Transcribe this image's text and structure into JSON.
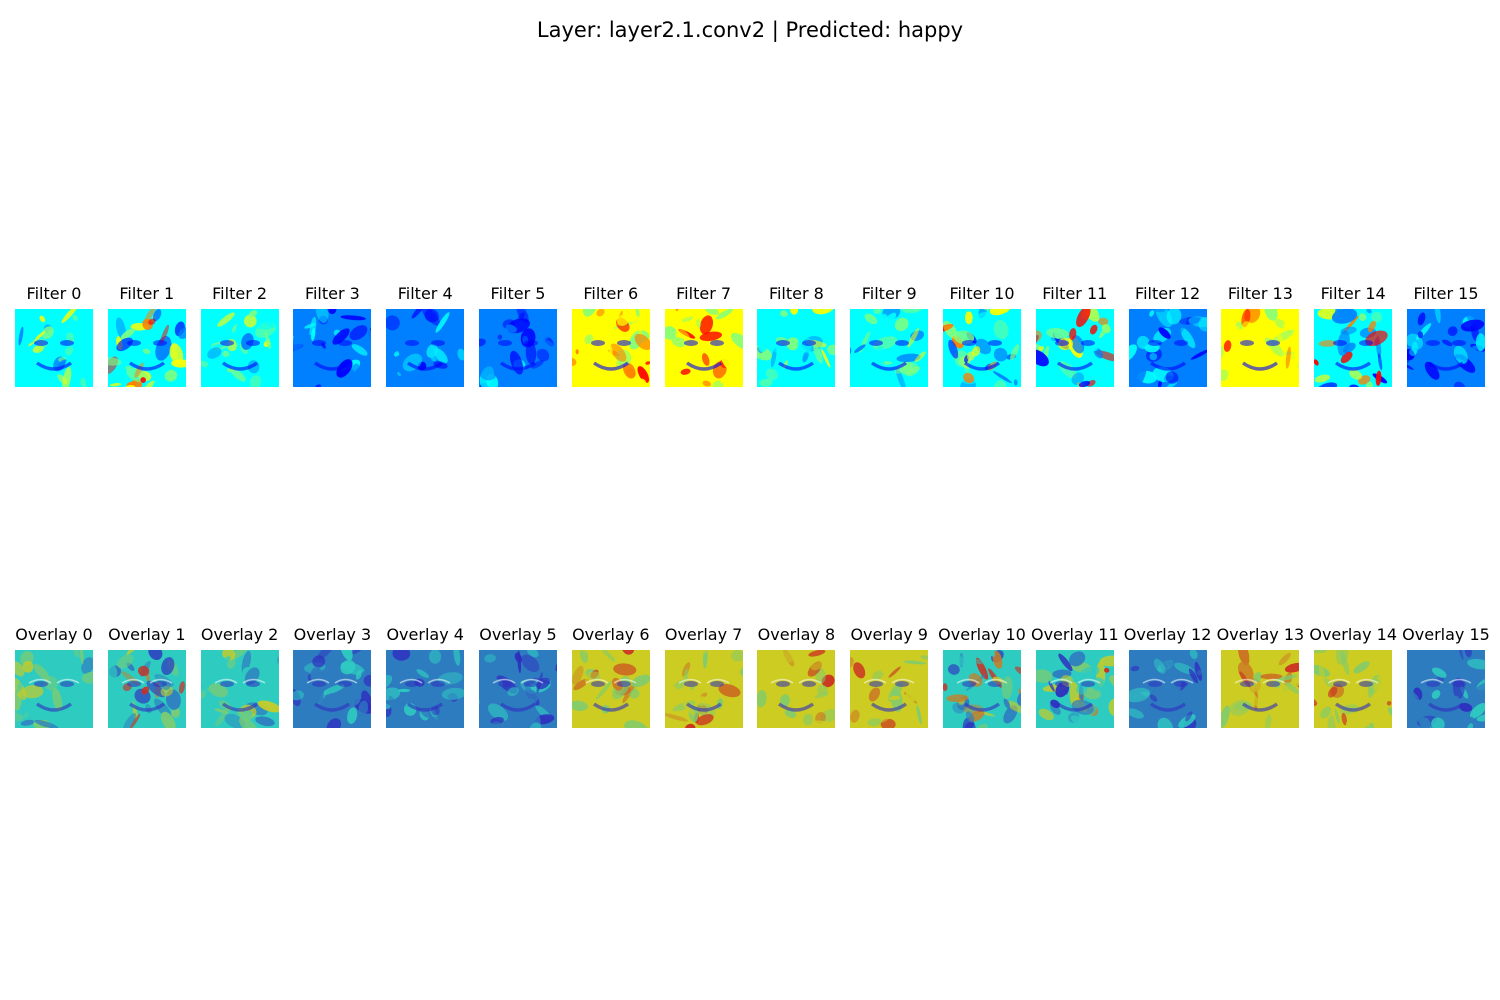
{
  "figure": {
    "title": "Layer: layer2.1.conv2 | Predicted: happy"
  },
  "filters": [
    {
      "label": "Filter 0",
      "tone": "teal"
    },
    {
      "label": "Filter 1",
      "tone": "mixed"
    },
    {
      "label": "Filter 2",
      "tone": "teal"
    },
    {
      "label": "Filter 3",
      "tone": "blue"
    },
    {
      "label": "Filter 4",
      "tone": "blue"
    },
    {
      "label": "Filter 5",
      "tone": "blue"
    },
    {
      "label": "Filter 6",
      "tone": "warm"
    },
    {
      "label": "Filter 7",
      "tone": "warm"
    },
    {
      "label": "Filter 8",
      "tone": "teal"
    },
    {
      "label": "Filter 9",
      "tone": "teal"
    },
    {
      "label": "Filter 10",
      "tone": "mixed"
    },
    {
      "label": "Filter 11",
      "tone": "mixed"
    },
    {
      "label": "Filter 12",
      "tone": "blue"
    },
    {
      "label": "Filter 13",
      "tone": "warm"
    },
    {
      "label": "Filter 14",
      "tone": "mixed"
    },
    {
      "label": "Filter 15",
      "tone": "blue"
    }
  ],
  "overlays": [
    {
      "label": "Overlay 0",
      "tone": "teal"
    },
    {
      "label": "Overlay 1",
      "tone": "mixed"
    },
    {
      "label": "Overlay 2",
      "tone": "teal"
    },
    {
      "label": "Overlay 3",
      "tone": "blue"
    },
    {
      "label": "Overlay 4",
      "tone": "blue"
    },
    {
      "label": "Overlay 5",
      "tone": "blue"
    },
    {
      "label": "Overlay 6",
      "tone": "warm"
    },
    {
      "label": "Overlay 7",
      "tone": "warm"
    },
    {
      "label": "Overlay 8",
      "tone": "warm"
    },
    {
      "label": "Overlay 9",
      "tone": "warm"
    },
    {
      "label": "Overlay 10",
      "tone": "mixed"
    },
    {
      "label": "Overlay 11",
      "tone": "mixed"
    },
    {
      "label": "Overlay 12",
      "tone": "blue"
    },
    {
      "label": "Overlay 13",
      "tone": "warm"
    },
    {
      "label": "Overlay 14",
      "tone": "warm"
    },
    {
      "label": "Overlay 15",
      "tone": "blue"
    }
  ],
  "colormap": {
    "name": "jet",
    "stops": [
      "#00007f",
      "#0000ff",
      "#007fff",
      "#00ffff",
      "#7fff7f",
      "#ffff00",
      "#ff7f00",
      "#ff0000",
      "#7f0000"
    ]
  }
}
